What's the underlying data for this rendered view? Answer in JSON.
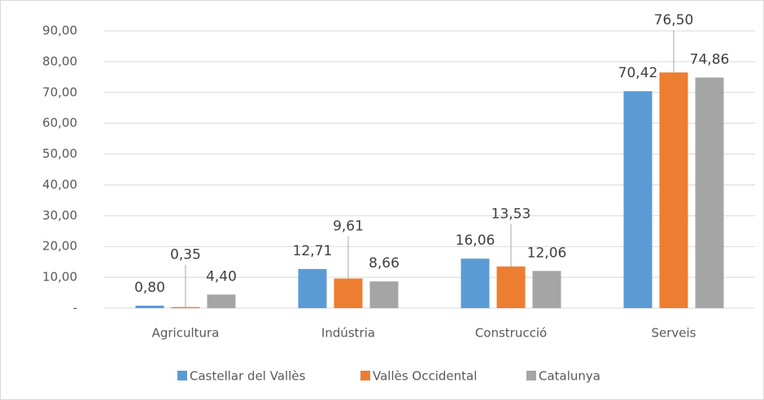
{
  "chart_data": {
    "type": "bar",
    "categories": [
      "Agricultura",
      "Indústria",
      "Construcció",
      "Serveis"
    ],
    "series": [
      {
        "name": "Castellar del Vallès",
        "color": "#5b9bd5",
        "values": [
          0.8,
          12.71,
          16.06,
          70.42
        ],
        "value_labels": [
          "0,80",
          "12,71",
          "16,06",
          "70,42"
        ]
      },
      {
        "name": "Vallès Occidental",
        "color": "#ed7d31",
        "values": [
          0.35,
          9.61,
          13.53,
          76.5
        ],
        "value_labels": [
          "0,35",
          "9,61",
          "13,53",
          "76,50"
        ]
      },
      {
        "name": "Catalunya",
        "color": "#a5a5a5",
        "values": [
          4.4,
          8.66,
          12.06,
          74.86
        ],
        "value_labels": [
          "4,40",
          "8,66",
          "12,06",
          "74,86"
        ]
      }
    ],
    "ylim": [
      0,
      90
    ],
    "yticks": [
      {
        "value": 0,
        "label": "-"
      },
      {
        "value": 10,
        "label": "10,00"
      },
      {
        "value": 20,
        "label": "20,00"
      },
      {
        "value": 30,
        "label": "30,00"
      },
      {
        "value": 40,
        "label": "40,00"
      },
      {
        "value": 50,
        "label": "50,00"
      },
      {
        "value": 60,
        "label": "60,00"
      },
      {
        "value": 70,
        "label": "70,00"
      },
      {
        "value": 80,
        "label": "80,00"
      },
      {
        "value": 90,
        "label": "90,00"
      }
    ],
    "grid": true,
    "legend": "bottom"
  }
}
